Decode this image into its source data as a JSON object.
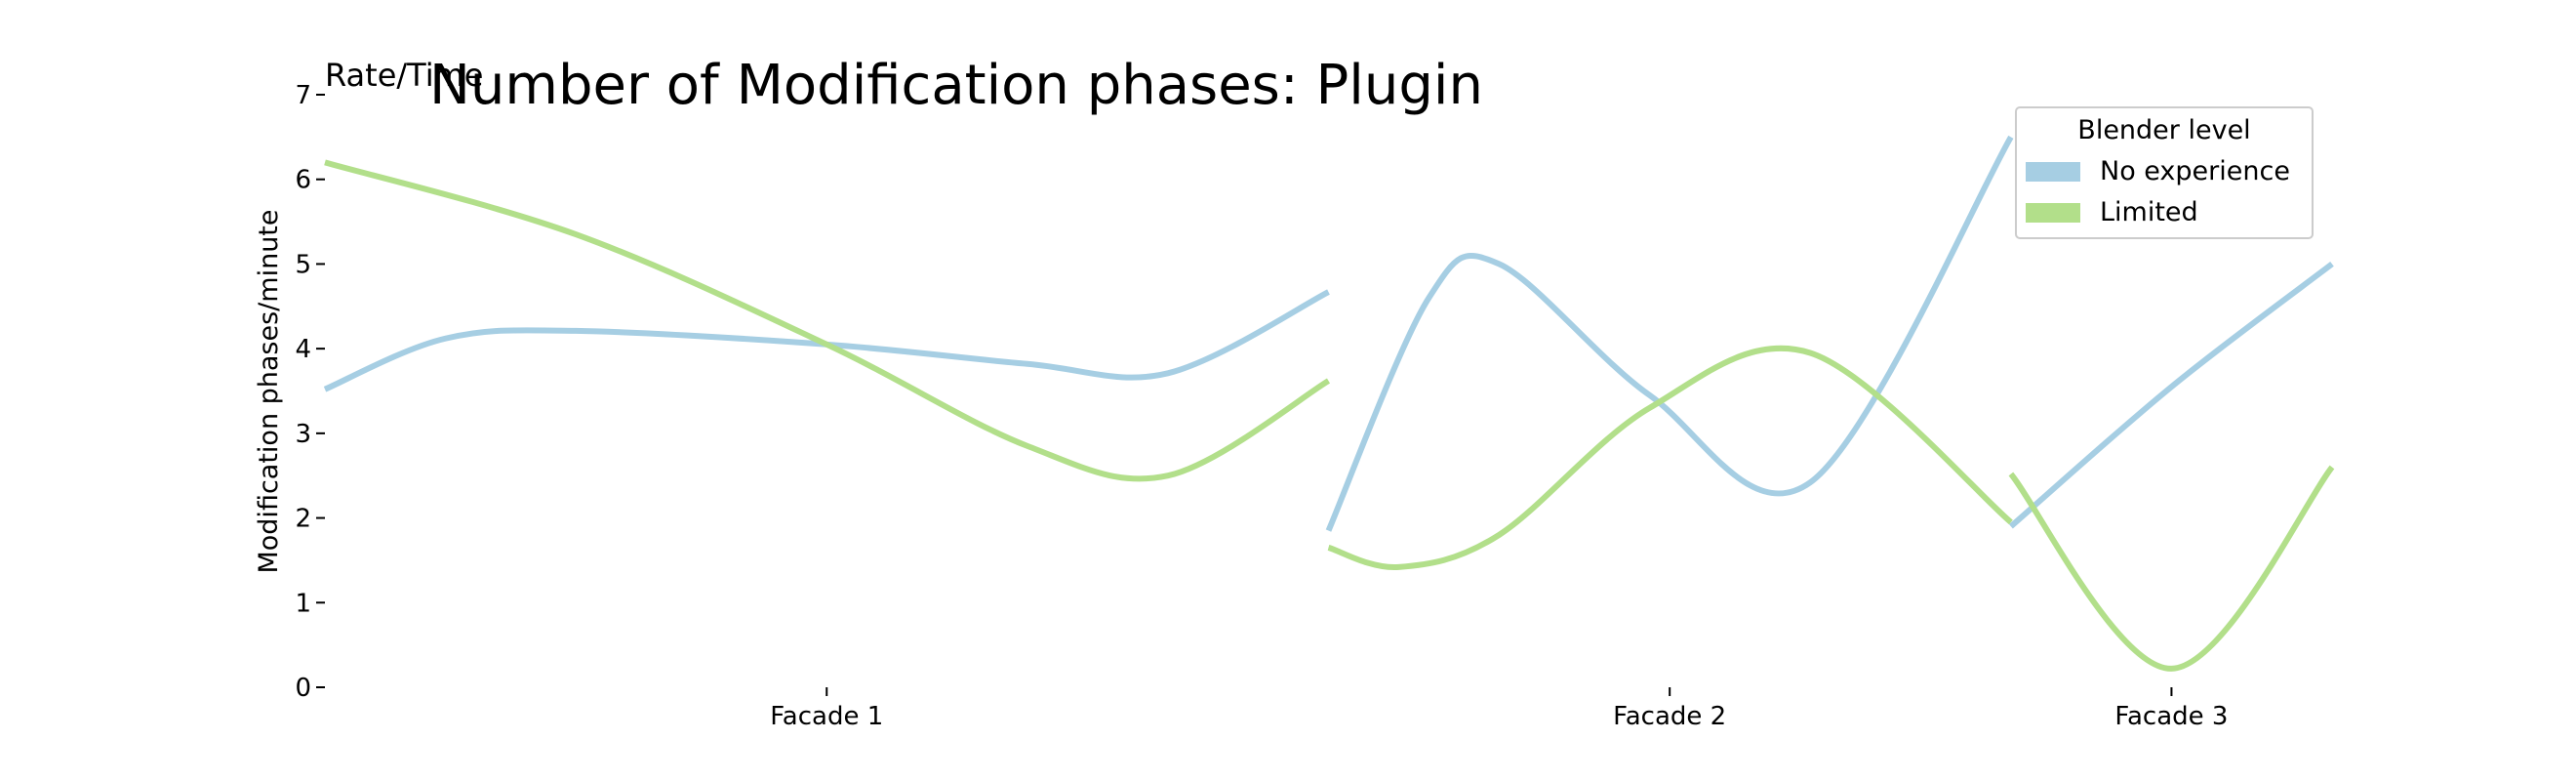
{
  "chart_data": {
    "type": "line",
    "title": "Number of Modification phases: Plugin",
    "corner_label": "Rate/Time",
    "ylabel": "Modification phases/minute",
    "xlabel": "",
    "ylim": [
      0,
      7
    ],
    "yticks": [
      0,
      1,
      2,
      3,
      4,
      5,
      6,
      7
    ],
    "ytick_labels": [
      "0",
      "1",
      "2",
      "3",
      "4",
      "5",
      "6",
      "7"
    ],
    "categories": [
      "Facade 1",
      "Facade 2",
      "Facade 3"
    ],
    "segment_spans": [
      [
        0,
        0.5
      ],
      [
        0.5,
        0.84
      ],
      [
        0.84,
        1.0
      ]
    ],
    "grid": false,
    "legend": {
      "title": "Blender level",
      "position": "top-right"
    },
    "series": [
      {
        "name": "No experience",
        "color": "#a6cee3",
        "segments": [
          [
            [
              0.0,
              3.52
            ],
            [
              0.06,
              4.12
            ],
            [
              0.125,
              4.21
            ],
            [
              0.25,
              4.05
            ],
            [
              0.35,
              3.82
            ],
            [
              0.42,
              3.71
            ],
            [
              0.5,
              4.67
            ]
          ],
          [
            [
              0.5,
              1.85
            ],
            [
              0.55,
              4.6
            ],
            [
              0.585,
              5.0
            ],
            [
              0.66,
              3.45
            ],
            [
              0.74,
              2.42
            ],
            [
              0.84,
              6.5
            ]
          ],
          [
            [
              0.84,
              1.9
            ],
            [
              0.92,
              3.55
            ],
            [
              1.0,
              5.0
            ]
          ]
        ]
      },
      {
        "name": "Limited",
        "color": "#b2df8a",
        "segments": [
          [
            [
              0.0,
              6.2
            ],
            [
              0.125,
              5.35
            ],
            [
              0.25,
              4.05
            ],
            [
              0.35,
              2.85
            ],
            [
              0.42,
              2.5
            ],
            [
              0.5,
              3.62
            ]
          ],
          [
            [
              0.5,
              1.65
            ],
            [
              0.535,
              1.42
            ],
            [
              0.585,
              1.8
            ],
            [
              0.66,
              3.3
            ],
            [
              0.74,
              3.95
            ],
            [
              0.84,
              1.95
            ]
          ],
          [
            [
              0.84,
              2.52
            ],
            [
              0.92,
              0.22
            ],
            [
              1.0,
              2.6
            ]
          ]
        ]
      }
    ]
  }
}
